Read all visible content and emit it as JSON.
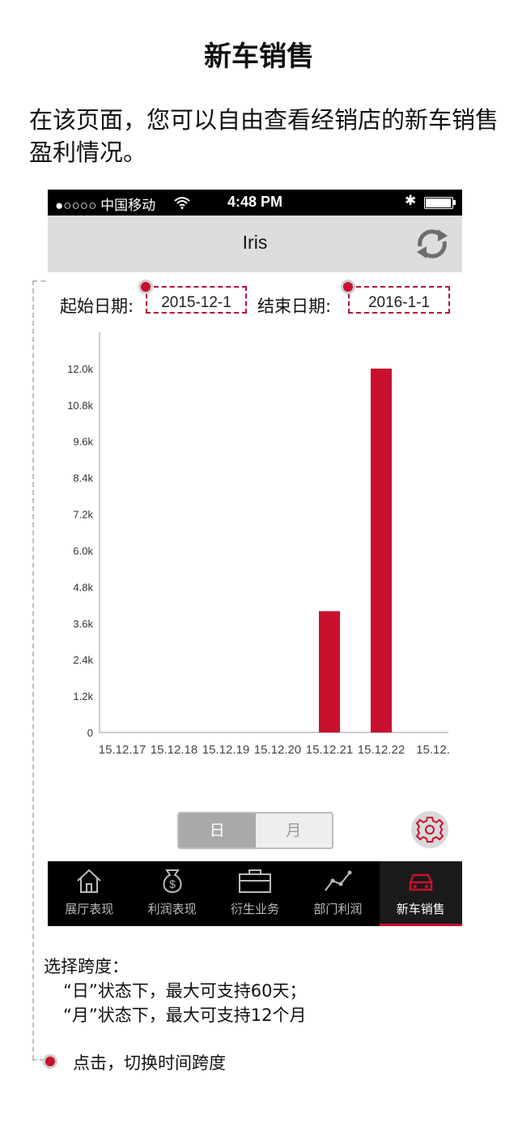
{
  "page_title": "新车销售",
  "intro": "在该页面，您可以自由查看经销店的新车销售盈利情况。",
  "status_bar": {
    "carrier": "●○○○○ 中国移动",
    "time": "4:48 PM"
  },
  "nav": {
    "title": "Iris",
    "refresh_icon": "refresh-icon"
  },
  "date_filter": {
    "start_label": "起始日期:",
    "start_value": "2015-12-1",
    "end_label": "结束日期:",
    "end_value": "2016-1-1"
  },
  "chart_data": {
    "type": "bar",
    "categories": [
      "15.12.17",
      "15.12.18",
      "15.12.19",
      "15.12.20",
      "15.12.21",
      "15.12.22",
      "15.12."
    ],
    "values": [
      0,
      0,
      0,
      0,
      4000,
      12000,
      0
    ],
    "y_ticks": [
      "0",
      "1.2k",
      "2.4k",
      "3.6k",
      "4.8k",
      "6.0k",
      "7.2k",
      "8.4k",
      "9.6k",
      "10.8k",
      "12.0k"
    ],
    "ylim": [
      0,
      13200
    ],
    "bar_color": "#c8102e",
    "title": "",
    "xlabel": "",
    "ylabel": ""
  },
  "segmented": {
    "day": "日",
    "month": "月",
    "selected": "day"
  },
  "settings_icon": "gear-icon",
  "tabs": [
    {
      "label": "展厅表现",
      "icon": "house-icon"
    },
    {
      "label": "利润表现",
      "icon": "money-bag-icon"
    },
    {
      "label": "衍生业务",
      "icon": "briefcase-icon"
    },
    {
      "label": "部门利润",
      "icon": "line-chart-icon"
    },
    {
      "label": "新车销售",
      "icon": "car-icon",
      "active": true
    }
  ],
  "notes": {
    "title": "选择跨度：",
    "line1": "“日”状态下，最大可支持60天；",
    "line2": "“月”状态下，最大可支持12个月",
    "click": "点击，切换时间跨度"
  },
  "accent_color": "#c8102e"
}
